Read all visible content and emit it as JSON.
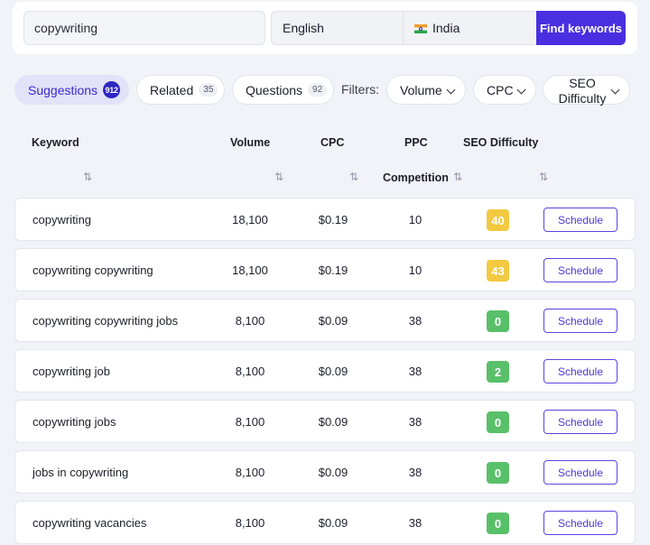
{
  "search": {
    "keyword": "copywriting",
    "language": "English",
    "country": "India",
    "find_label": "Find keywords"
  },
  "tabs": [
    {
      "label": "Suggestions",
      "count": "912"
    },
    {
      "label": "Related",
      "count": "35"
    },
    {
      "label": "Questions",
      "count": "92"
    }
  ],
  "filters": {
    "label": "Filters:",
    "volume": "Volume",
    "cpc": "CPC",
    "seo_line1": "SEO",
    "seo_line2": "Difficulty"
  },
  "columns": {
    "keyword": "Keyword",
    "volume": "Volume",
    "cpc": "CPC",
    "ppc_line1": "PPC",
    "ppc_line2": "Competition",
    "seo": "SEO Difficulty",
    "sort_glyph": "⇅"
  },
  "rows": [
    {
      "keyword": "copywriting",
      "volume": "18,100",
      "cpc": "$0.19",
      "ppc": "10",
      "difficulty": "40",
      "color": "#f2c940",
      "action": "Schedule"
    },
    {
      "keyword": "copywriting copywriting",
      "volume": "18,100",
      "cpc": "$0.19",
      "ppc": "10",
      "difficulty": "43",
      "color": "#f2c940",
      "action": "Schedule"
    },
    {
      "keyword": "copywriting copywriting jobs",
      "volume": "8,100",
      "cpc": "$0.09",
      "ppc": "38",
      "difficulty": "0",
      "color": "#59c06a",
      "action": "Schedule"
    },
    {
      "keyword": "copywriting job",
      "volume": "8,100",
      "cpc": "$0.09",
      "ppc": "38",
      "difficulty": "2",
      "color": "#59c06a",
      "action": "Schedule"
    },
    {
      "keyword": "copywriting jobs",
      "volume": "8,100",
      "cpc": "$0.09",
      "ppc": "38",
      "difficulty": "0",
      "color": "#59c06a",
      "action": "Schedule"
    },
    {
      "keyword": "jobs in copywriting",
      "volume": "8,100",
      "cpc": "$0.09",
      "ppc": "38",
      "difficulty": "0",
      "color": "#59c06a",
      "action": "Schedule"
    },
    {
      "keyword": "copywriting vacancies",
      "volume": "8,100",
      "cpc": "$0.09",
      "ppc": "38",
      "difficulty": "0",
      "color": "#59c06a",
      "action": "Schedule"
    }
  ],
  "colors": {
    "accent": "#4a2fe0",
    "easy": "#59c06a",
    "medium": "#f2c940"
  }
}
